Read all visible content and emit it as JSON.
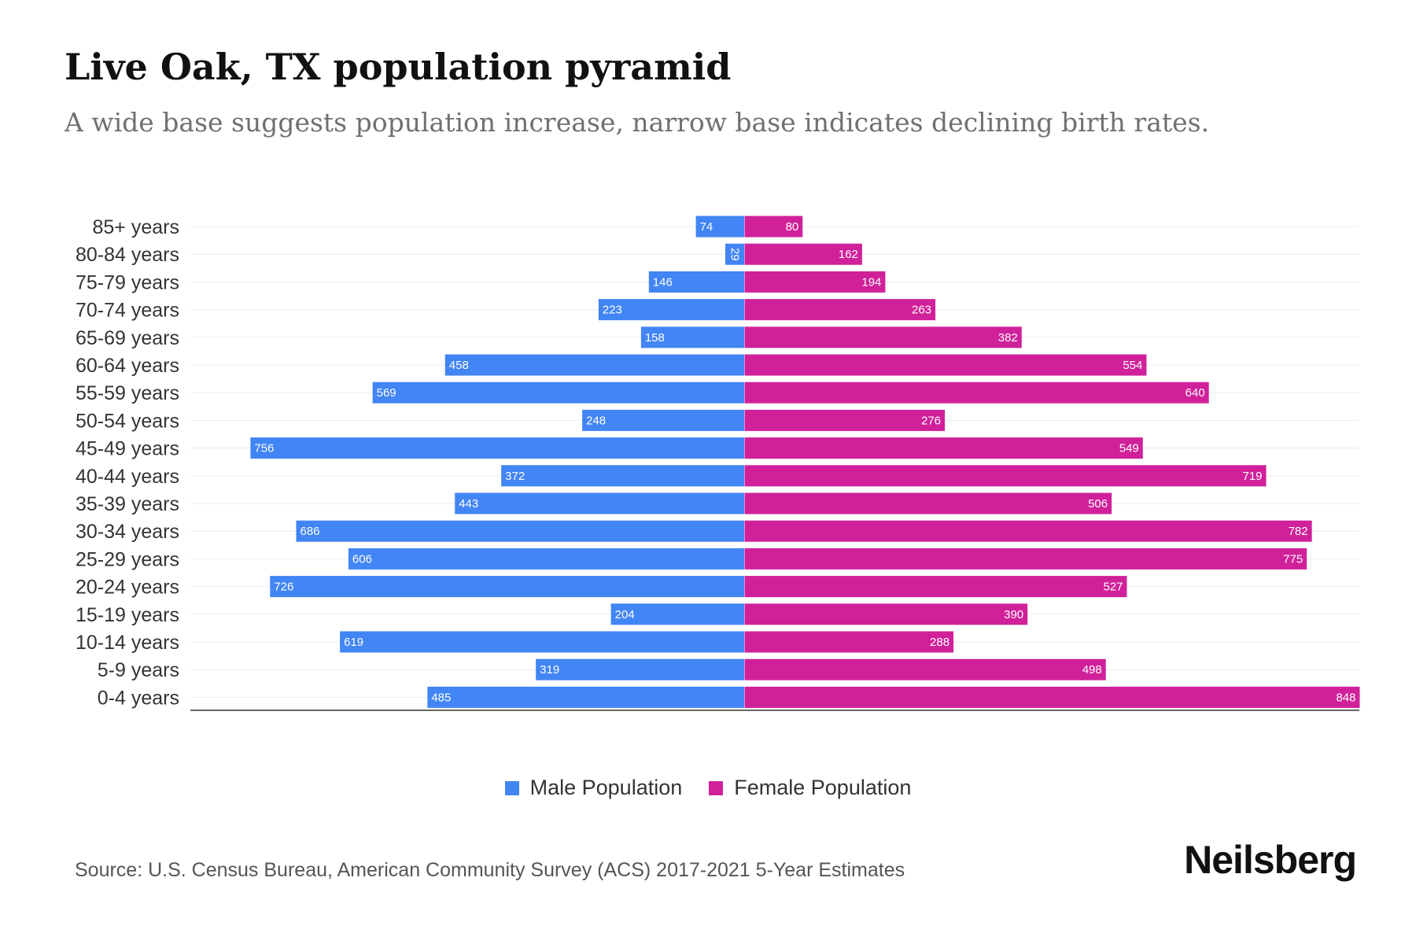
{
  "chart_data": {
    "type": "bar",
    "orientation": "horizontal-pyramid",
    "title": "Live Oak, TX population pyramid",
    "subtitle": "A wide base suggests population increase, narrow base indicates declining birth rates.",
    "categories": [
      "85+ years",
      "80-84 years",
      "75-79 years",
      "70-74 years",
      "65-69 years",
      "60-64 years",
      "55-59 years",
      "50-54 years",
      "45-49 years",
      "40-44 years",
      "35-39 years",
      "30-34 years",
      "25-29 years",
      "20-24 years",
      "15-19 years",
      "10-14 years",
      "5-9 years",
      "0-4 years"
    ],
    "series": [
      {
        "name": "Male Population",
        "color": "#4285f4",
        "values": [
          74,
          29,
          146,
          223,
          158,
          458,
          569,
          248,
          756,
          372,
          443,
          686,
          606,
          726,
          204,
          619,
          319,
          485
        ]
      },
      {
        "name": "Female Population",
        "color": "#d0219a",
        "values": [
          80,
          162,
          194,
          263,
          382,
          554,
          640,
          276,
          549,
          719,
          506,
          782,
          775,
          527,
          390,
          288,
          498,
          848
        ]
      }
    ],
    "xlim": [
      -848,
      848
    ],
    "legend_position": "bottom-center"
  },
  "source": "Source: U.S. Census Bureau, American Community Survey (ACS) 2017-2021 5-Year Estimates",
  "brand": "Neilsberg"
}
